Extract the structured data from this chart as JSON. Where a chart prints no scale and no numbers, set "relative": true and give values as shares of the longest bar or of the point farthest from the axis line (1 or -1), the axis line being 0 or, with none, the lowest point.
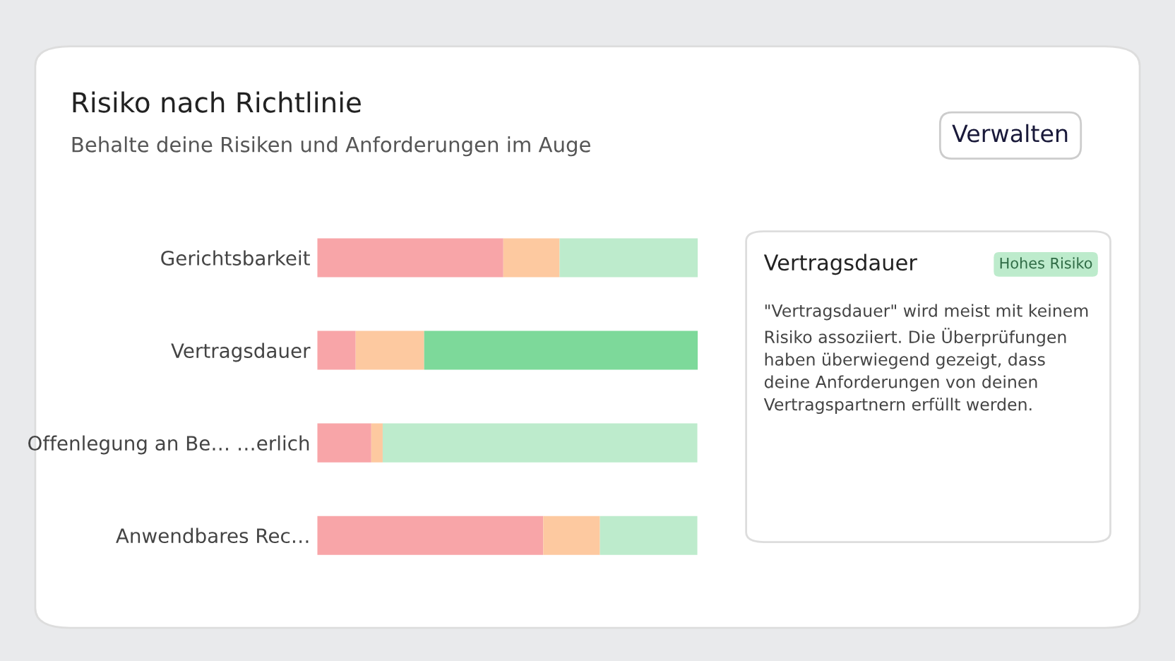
{
  "chart_data": {
    "type": "bar",
    "orientation": "horizontal",
    "stacked": true,
    "relative": true,
    "title": "Risiko nach Richtlinie",
    "subtitle": "Behalte deine Risiken und Anforderungen im Auge",
    "categories": [
      "Gerichtsbarkeit",
      "Vertragsdauer",
      "Offenlegung an Be… …erlich",
      "Anwendbares Rec…"
    ],
    "series": [
      {
        "color": "#f8a5a8",
        "values": [
          0.489,
          0.101,
          0.142,
          0.594
        ]
      },
      {
        "color": "#fdc9a0",
        "values": [
          0.148,
          0.18,
          0.03,
          0.149
        ]
      },
      {
        "color": "#bdebcc",
        "colors": [
          "#bdebcc",
          "#7dd99a",
          "#bdebcc",
          "#bdebcc"
        ],
        "values": [
          0.363,
          0.719,
          0.827,
          0.256
        ]
      }
    ],
    "annotations": [
      "Verwalten",
      "Vertragsdauer",
      "Hohes Risiko",
      "\"Vertragsdauer\" wird meist mit keinem Risiko assoziiert. Die Überprüfungen haben überwiegend gezeigt, dass deine Anforderungen von deinen Vertragspartnern erfüllt werden."
    ]
  }
}
